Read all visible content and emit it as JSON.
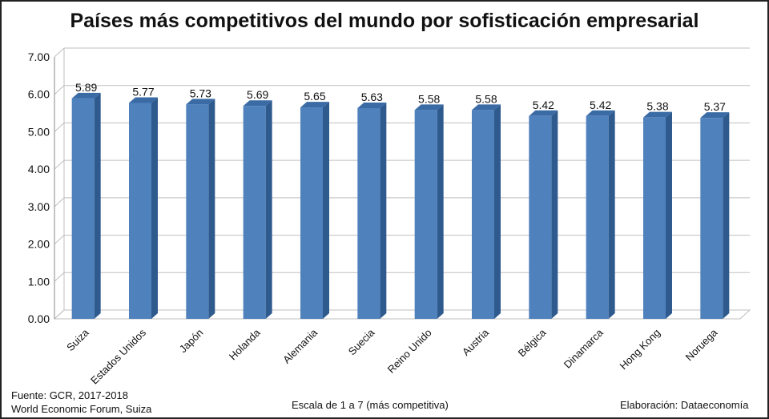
{
  "chart_data": {
    "type": "bar",
    "title": "Países más competitivos del mundo por sofisticación empresarial",
    "categories": [
      "Suiza",
      "Estados Unidos",
      "Japón",
      "Holanda",
      "Alemania",
      "Suecia",
      "Reino Unido",
      "Austria",
      "Bélgica",
      "Dinamarca",
      "Hong Kong",
      "Noruega"
    ],
    "values": [
      5.89,
      5.77,
      5.73,
      5.69,
      5.65,
      5.63,
      5.58,
      5.58,
      5.42,
      5.42,
      5.38,
      5.37
    ],
    "value_labels": [
      "5.89",
      "5.77",
      "5.73",
      "5.69",
      "5.65",
      "5.63",
      "5.58",
      "5.58",
      "5.42",
      "5.42",
      "5.38",
      "5.37"
    ],
    "ylim": [
      0,
      7
    ],
    "yticks": [
      "0.00",
      "1.00",
      "2.00",
      "3.00",
      "4.00",
      "5.00",
      "6.00",
      "7.00"
    ],
    "xlabel": "",
    "ylabel": "",
    "grid": true,
    "bar_color": "#4F81BD",
    "bar_side_color": "#2E5A8E",
    "bar_top_color": "#3A6BA5"
  },
  "footer": {
    "source_line1": "Fuente:  GCR, 2017-2018",
    "source_line2": "World Economic Forum, Suiza",
    "scale_note": "Escala de 1 a 7 (más competitiva)",
    "credit": "Elaboración: Dataeconomía"
  }
}
